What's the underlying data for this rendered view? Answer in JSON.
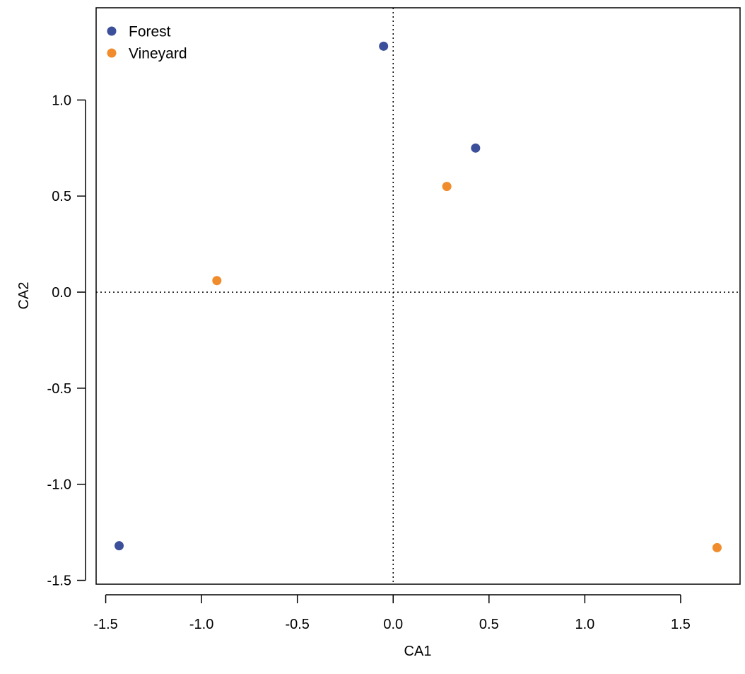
{
  "chart_data": {
    "type": "scatter",
    "title": "",
    "xlabel": "CA1",
    "ylabel": "CA2",
    "xlim": [
      -1.55,
      1.81
    ],
    "ylim": [
      -1.52,
      1.48
    ],
    "x_ticks": [
      -1.5,
      -1.0,
      -0.5,
      0.0,
      0.5,
      1.0,
      1.5
    ],
    "x_tick_labels": [
      "-1.5",
      "-1.0",
      "-0.5",
      "0.0",
      "0.5",
      "1.0",
      "1.5"
    ],
    "y_ticks": [
      -1.5,
      -1.0,
      -0.5,
      0.0,
      0.5,
      1.0
    ],
    "y_tick_labels": [
      "-1.5",
      "-1.0",
      "-0.5",
      "0.0",
      "0.5",
      "1.0"
    ],
    "reference_lines": {
      "x": 0,
      "y": 0,
      "style": "dotted"
    },
    "grid": false,
    "legend_position": "top-left",
    "series": [
      {
        "name": "Forest",
        "color": "#3b4f9a",
        "points": [
          {
            "x": -0.05,
            "y": 1.28
          },
          {
            "x": 0.43,
            "y": 0.75
          },
          {
            "x": -1.43,
            "y": -1.32
          }
        ]
      },
      {
        "name": "Vineyard",
        "color": "#f08c2c",
        "points": [
          {
            "x": 0.28,
            "y": 0.55
          },
          {
            "x": -0.92,
            "y": 0.06
          },
          {
            "x": 1.69,
            "y": -1.33
          }
        ]
      }
    ]
  }
}
